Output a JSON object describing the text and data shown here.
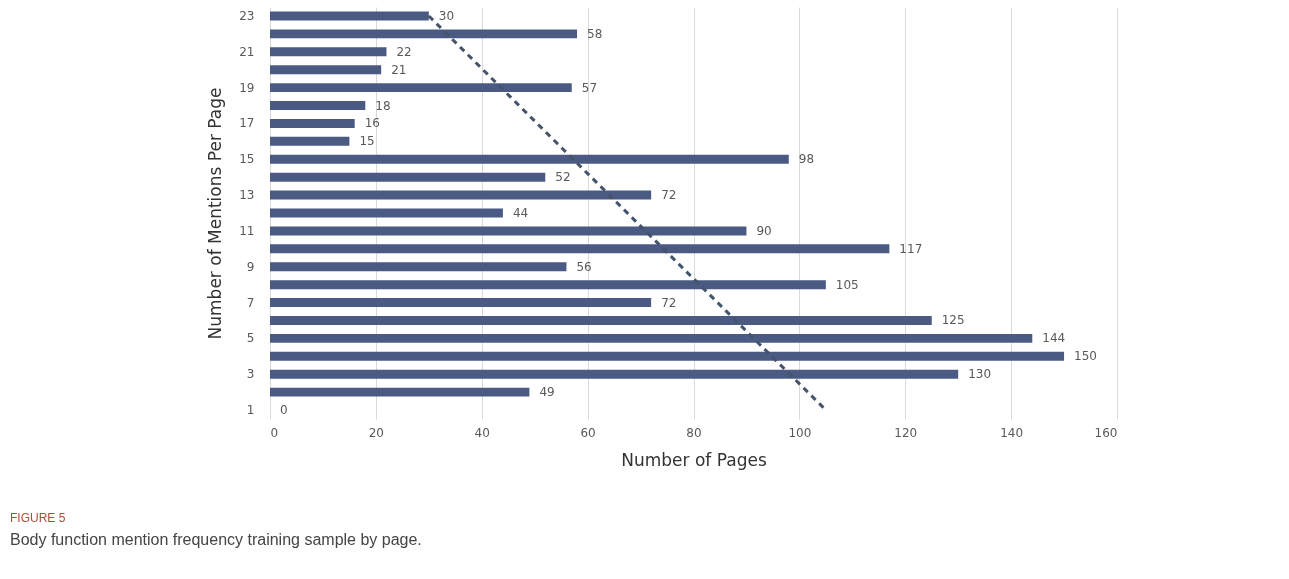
{
  "chart_data": {
    "type": "bar",
    "orientation": "horizontal",
    "xlabel": "Number of Pages",
    "ylabel": "Number of Mentions Per Page",
    "categories": [
      "23",
      null,
      "21",
      null,
      "19",
      null,
      "17",
      null,
      "15",
      null,
      "13",
      null,
      "11",
      null,
      "9",
      null,
      "7",
      null,
      "5",
      null,
      "3",
      null,
      "1"
    ],
    "series": [
      {
        "color": "#4a5a82",
        "values": [
          30,
          58,
          22,
          21,
          57,
          18,
          16,
          15,
          98,
          52,
          72,
          44,
          90,
          117,
          56,
          105,
          72,
          125,
          144,
          150,
          130,
          49,
          0
        ],
        "value_labels": [
          "30",
          "58",
          "22",
          "21",
          "57",
          "18",
          "16",
          "15",
          "98",
          "52",
          "72",
          "44",
          "90",
          "117",
          "56",
          "105",
          "72",
          "125",
          "144",
          "150",
          "130",
          "49",
          "0"
        ]
      },
      {
        "type": "line",
        "line_style": "dashed",
        "color": "#44546a",
        "x": [
          "23",
          "1"
        ],
        "values": [
          30,
          105
        ]
      }
    ],
    "xlim": [
      0,
      160
    ],
    "xticks": [
      0,
      20,
      40,
      60,
      80,
      100,
      120,
      140,
      160
    ],
    "grid": "x",
    "annotations": [
      "FIGURE 5",
      "Body function mention frequency training sample by page."
    ]
  }
}
